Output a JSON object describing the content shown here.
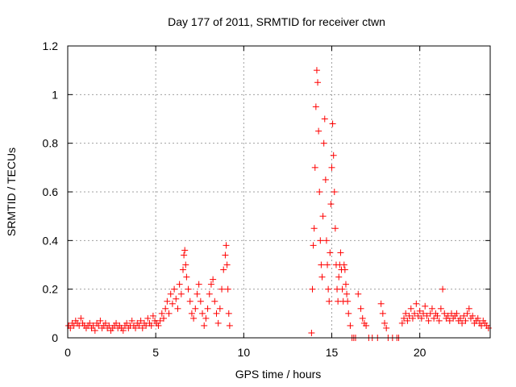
{
  "chart_data": {
    "type": "scatter",
    "title": "Day 177 of 2011, SRMTID for receiver ctwn",
    "xlabel": "GPS time / hours",
    "ylabel": "SRMTID / TECUs",
    "xlim": [
      0,
      24
    ],
    "ylim": [
      0,
      1.2
    ],
    "xticks": [
      0,
      5,
      10,
      15,
      20
    ],
    "xtick_labels": [
      "0",
      "5",
      "10",
      "15",
      "20"
    ],
    "yticks": [
      0,
      0.2,
      0.4,
      0.6,
      0.8,
      1.0,
      1.2
    ],
    "ytick_labels": [
      "0",
      "0.2",
      "0.4",
      "0.6",
      "0.8",
      "1",
      "1.2"
    ],
    "grid": true,
    "marker": "+",
    "color": "#ff0000",
    "series": [
      {
        "name": "SRMTID",
        "x": [
          0.05,
          0.15,
          0.25,
          0.35,
          0.45,
          0.55,
          0.65,
          0.75,
          0.85,
          0.95,
          1.05,
          1.15,
          1.25,
          1.35,
          1.45,
          1.55,
          1.65,
          1.75,
          1.85,
          1.95,
          2.05,
          2.15,
          2.25,
          2.35,
          2.45,
          2.55,
          2.65,
          2.75,
          2.85,
          2.95,
          3.05,
          3.15,
          3.25,
          3.35,
          3.45,
          3.55,
          3.65,
          3.75,
          3.85,
          3.95,
          4.05,
          4.15,
          4.25,
          4.35,
          4.45,
          4.55,
          4.65,
          4.75,
          4.85,
          4.95,
          5.05,
          5.15,
          5.25,
          5.35,
          5.45,
          5.55,
          5.65,
          5.75,
          5.85,
          5.95,
          6.05,
          6.15,
          6.25,
          6.35,
          6.45,
          6.55,
          6.6,
          6.65,
          6.7,
          6.75,
          6.85,
          6.95,
          7.05,
          7.15,
          7.25,
          7.35,
          7.45,
          7.55,
          7.65,
          7.75,
          7.85,
          7.95,
          8.05,
          8.15,
          8.25,
          8.35,
          8.45,
          8.55,
          8.65,
          8.75,
          8.85,
          8.95,
          9.0,
          9.05,
          9.1,
          9.15,
          9.2,
          13.85,
          13.9,
          13.95,
          14.0,
          14.05,
          14.1,
          14.15,
          14.2,
          14.25,
          14.3,
          14.35,
          14.4,
          14.45,
          14.5,
          14.55,
          14.6,
          14.65,
          14.7,
          14.75,
          14.8,
          14.85,
          14.9,
          14.95,
          15.0,
          15.05,
          15.1,
          15.15,
          15.2,
          15.25,
          15.3,
          15.35,
          15.4,
          15.45,
          15.5,
          15.55,
          15.6,
          15.65,
          15.7,
          15.75,
          15.8,
          15.85,
          15.9,
          15.95,
          16.05,
          16.15,
          16.25,
          16.35,
          16.5,
          16.65,
          16.75,
          16.85,
          16.95,
          17.1,
          17.3,
          17.6,
          17.8,
          17.9,
          18.0,
          18.1,
          18.2,
          18.45,
          18.7,
          18.8,
          19.0,
          19.1,
          19.2,
          19.3,
          19.4,
          19.5,
          19.6,
          19.7,
          19.8,
          19.9,
          20.0,
          20.1,
          20.2,
          20.3,
          20.4,
          20.5,
          20.6,
          20.7,
          20.8,
          20.9,
          21.0,
          21.1,
          21.2,
          21.3,
          21.4,
          21.5,
          21.6,
          21.7,
          21.8,
          21.9,
          22.0,
          22.1,
          22.2,
          22.3,
          22.4,
          22.5,
          22.6,
          22.7,
          22.8,
          22.9,
          23.0,
          23.1,
          23.2,
          23.3,
          23.4,
          23.5,
          23.6,
          23.7,
          23.8,
          23.9
        ],
        "y": [
          0.05,
          0.04,
          0.06,
          0.05,
          0.07,
          0.06,
          0.05,
          0.08,
          0.06,
          0.05,
          0.04,
          0.05,
          0.06,
          0.04,
          0.05,
          0.03,
          0.06,
          0.05,
          0.07,
          0.04,
          0.05,
          0.06,
          0.04,
          0.05,
          0.03,
          0.04,
          0.05,
          0.06,
          0.04,
          0.05,
          0.04,
          0.03,
          0.05,
          0.06,
          0.04,
          0.05,
          0.07,
          0.05,
          0.04,
          0.06,
          0.05,
          0.07,
          0.04,
          0.06,
          0.05,
          0.08,
          0.06,
          0.05,
          0.09,
          0.07,
          0.06,
          0.05,
          0.07,
          0.1,
          0.08,
          0.12,
          0.15,
          0.1,
          0.18,
          0.14,
          0.2,
          0.16,
          0.12,
          0.22,
          0.18,
          0.28,
          0.34,
          0.36,
          0.3,
          0.25,
          0.2,
          0.15,
          0.1,
          0.08,
          0.12,
          0.18,
          0.22,
          0.15,
          0.1,
          0.05,
          0.08,
          0.12,
          0.18,
          0.22,
          0.24,
          0.15,
          0.1,
          0.06,
          0.12,
          0.2,
          0.28,
          0.34,
          0.38,
          0.3,
          0.2,
          0.1,
          0.05,
          0.02,
          0.2,
          0.38,
          0.45,
          0.7,
          0.95,
          1.1,
          1.05,
          0.85,
          0.6,
          0.4,
          0.3,
          0.25,
          0.5,
          0.8,
          0.9,
          0.65,
          0.4,
          0.3,
          0.2,
          0.15,
          0.35,
          0.55,
          0.7,
          0.88,
          0.75,
          0.6,
          0.45,
          0.3,
          0.2,
          0.15,
          0.25,
          0.3,
          0.35,
          0.28,
          0.2,
          0.15,
          0.3,
          0.28,
          0.22,
          0.18,
          0.15,
          0.1,
          0.05,
          0.0,
          0.0,
          0.0,
          0.18,
          0.12,
          0.08,
          0.06,
          0.05,
          0.0,
          0.0,
          0.0,
          0.14,
          0.1,
          0.06,
          0.04,
          0.0,
          0.0,
          0.0,
          0.0,
          0.06,
          0.08,
          0.1,
          0.07,
          0.09,
          0.12,
          0.08,
          0.1,
          0.14,
          0.09,
          0.11,
          0.08,
          0.1,
          0.13,
          0.09,
          0.07,
          0.1,
          0.12,
          0.08,
          0.1,
          0.09,
          0.07,
          0.12,
          0.2,
          0.1,
          0.08,
          0.09,
          0.07,
          0.1,
          0.08,
          0.09,
          0.1,
          0.07,
          0.08,
          0.06,
          0.09,
          0.07,
          0.1,
          0.12,
          0.08,
          0.09,
          0.06,
          0.07,
          0.08,
          0.06,
          0.05,
          0.07,
          0.06,
          0.05,
          0.04
        ]
      }
    ]
  }
}
